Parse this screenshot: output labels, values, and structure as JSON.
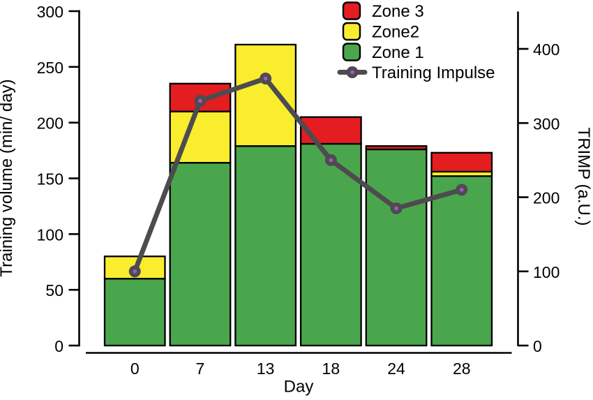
{
  "chart_data": {
    "type": "bar",
    "subtype": "stacked-bar-with-line-overlay",
    "categories": [
      "0",
      "7",
      "13",
      "18",
      "24",
      "28"
    ],
    "series": [
      {
        "name": "Zone 1",
        "color": "#4aa64c",
        "values": [
          60,
          164,
          179,
          181,
          176,
          152
        ]
      },
      {
        "name": "Zone2",
        "color": "#f9ed2e",
        "values": [
          20,
          46,
          91,
          0,
          0,
          4
        ]
      },
      {
        "name": "Zone 3",
        "color": "#e41d20",
        "values": [
          0,
          25,
          0,
          24,
          3,
          17
        ]
      }
    ],
    "line_series": {
      "name": "Training Impulse",
      "axis": "right",
      "color": "#4e4b50",
      "marker_dot_color": "#a05ac8",
      "values": [
        100,
        330,
        360,
        250,
        185,
        210
      ]
    },
    "xlabel": "Day",
    "ylabel_left": "Training volume (min/ day)",
    "ylabel_right": "TRIMP (a.U.)",
    "ylim_left": [
      0,
      300
    ],
    "yticks_left": [
      0,
      50,
      100,
      150,
      200,
      250,
      300
    ],
    "ylim_right": [
      0,
      450
    ],
    "yticks_right": [
      0,
      100,
      200,
      300,
      400
    ],
    "legend_order": [
      "Zone 3",
      "Zone2",
      "Zone 1",
      "Training Impulse"
    ],
    "grid": false,
    "legend_position": "top-center-inside",
    "bar_border_color": "#000000",
    "axis_color": "#000000"
  }
}
